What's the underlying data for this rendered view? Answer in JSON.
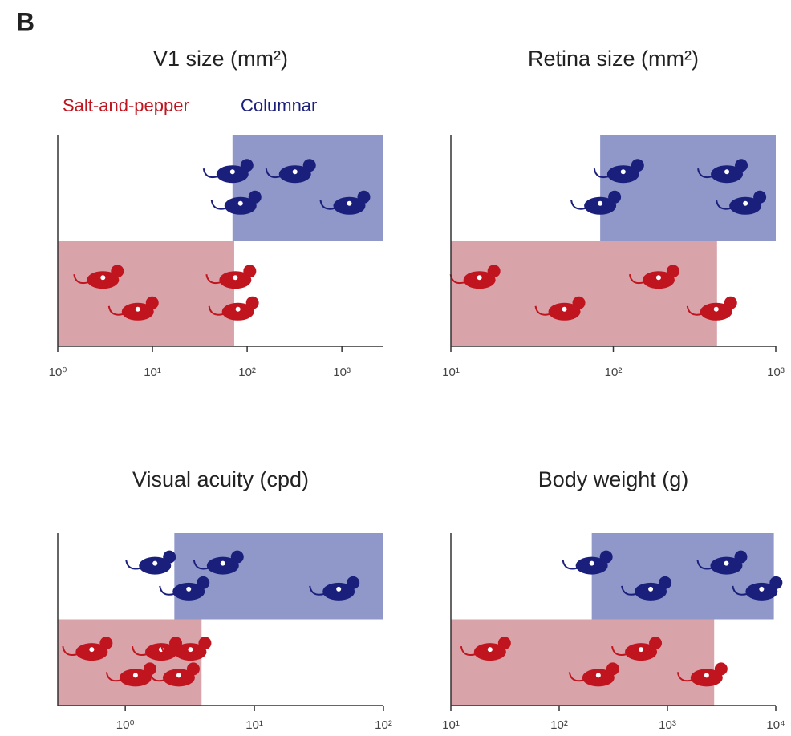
{
  "panel_label": "B",
  "chart_data": [
    {
      "type": "range",
      "title": "V1 size (mm²)",
      "log_x": true,
      "xlim": [
        1,
        2750
      ],
      "xticks": [
        {
          "value": 1,
          "label": "10⁰"
        },
        {
          "value": 10,
          "label": "10¹"
        },
        {
          "value": 100,
          "label": "10²"
        },
        {
          "value": 1000,
          "label": "10³"
        }
      ],
      "series": [
        {
          "name": "Salt-and-pepper",
          "color": "#c0141e",
          "range_color": "#d9a3aa",
          "range": [
            1,
            73
          ],
          "values": [
            3,
            7,
            75,
            80
          ]
        },
        {
          "name": "Columnar",
          "color": "#1b1f7c",
          "range_color": "#8f98c9",
          "range": [
            70,
            2750
          ],
          "values": [
            70,
            85,
            320,
            1200
          ]
        }
      ]
    },
    {
      "type": "range",
      "title": "Retina size (mm²)",
      "log_x": true,
      "xlim": [
        10,
        1000
      ],
      "xticks": [
        {
          "value": 10,
          "label": "10¹"
        },
        {
          "value": 100,
          "label": "10²"
        },
        {
          "value": 1000,
          "label": "10³"
        }
      ],
      "series": [
        {
          "color": "#c0141e",
          "range_color": "#d9a3aa",
          "range": [
            10,
            435
          ],
          "values": [
            15,
            50,
            190,
            430
          ]
        },
        {
          "color": "#1b1f7c",
          "range_color": "#8f98c9",
          "range": [
            83,
            1000
          ],
          "values": [
            115,
            83,
            500,
            650
          ]
        }
      ]
    },
    {
      "type": "range",
      "title": "Visual acuity (cpd)",
      "log_x": true,
      "xlim": [
        0.3,
        100
      ],
      "xticks": [
        {
          "value": 1,
          "label": "10⁰"
        },
        {
          "value": 10,
          "label": "10¹"
        },
        {
          "value": 100,
          "label": "10²"
        }
      ],
      "series": [
        {
          "color": "#c0141e",
          "range_color": "#d9a3aa",
          "range": [
            0.3,
            3.9
          ],
          "values": [
            0.55,
            1.2,
            1.9,
            2.6,
            3.2
          ]
        },
        {
          "color": "#1b1f7c",
          "range_color": "#8f98c9",
          "range": [
            2.4,
            100
          ],
          "values": [
            1.7,
            3.1,
            5.7,
            45
          ]
        }
      ]
    },
    {
      "type": "range",
      "title": "Body weight (g)",
      "log_x": true,
      "xlim": [
        10,
        10000
      ],
      "xticks": [
        {
          "value": 10,
          "label": "10¹"
        },
        {
          "value": 100,
          "label": "10²"
        },
        {
          "value": 1000,
          "label": "10³"
        },
        {
          "value": 10000,
          "label": "10⁴"
        }
      ],
      "series": [
        {
          "color": "#c0141e",
          "range_color": "#d9a3aa",
          "range": [
            10,
            2700
          ],
          "values": [
            23,
            230,
            570,
            2300
          ]
        },
        {
          "color": "#1b1f7c",
          "range_color": "#8f98c9",
          "range": [
            200,
            9600
          ],
          "values": [
            200,
            700,
            3500,
            7400
          ]
        }
      ]
    }
  ]
}
